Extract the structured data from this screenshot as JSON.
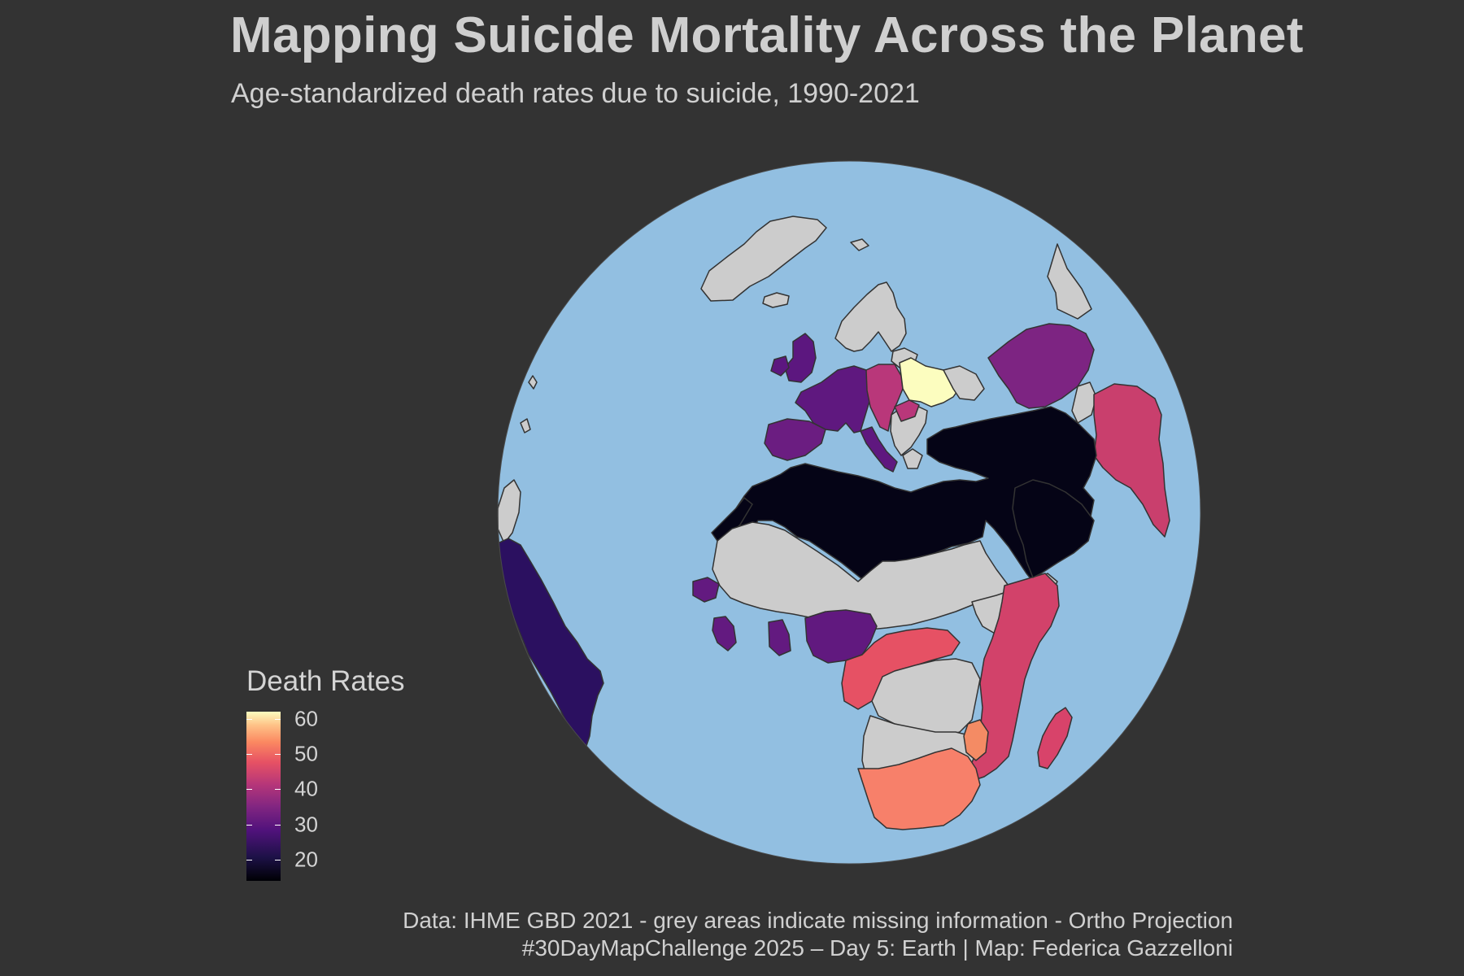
{
  "title": "Mapping Suicide Mortality Across the Planet",
  "subtitle": "Age-standardized death rates due to suicide, 1990-2021",
  "legend": {
    "title": "Death Rates",
    "min": 14,
    "max": 62,
    "ticks": [
      "60",
      "50",
      "40",
      "30",
      "20"
    ],
    "tick_values": [
      60,
      50,
      40,
      30,
      20
    ],
    "palette": "magma"
  },
  "caption": {
    "line1": "Data: IHME GBD 2021 - grey areas indicate missing information - Ortho Projection",
    "line2": "#30DayMapChallenge 2025 – Day 5: Earth | Map: Federica Gazzelloni"
  },
  "colors": {
    "background": "#333333",
    "ocean": "#92bfe1",
    "missing": "#cccccc",
    "border": "#333333"
  },
  "map": {
    "projection": "orthographic",
    "regions": [
      {
        "name": "Ukraine",
        "value": 62,
        "color": "#fcfdbf"
      },
      {
        "name": "Southern Africa",
        "value": 52,
        "color": "#f7806a"
      },
      {
        "name": "Mozambique",
        "value": 50,
        "color": "#f48b64"
      },
      {
        "name": "Central Africa",
        "value": 44,
        "color": "#e65164"
      },
      {
        "name": "Iran / South Asia",
        "value": 40,
        "color": "#c93f6d"
      },
      {
        "name": "East Africa",
        "value": 40,
        "color": "#d2426a"
      },
      {
        "name": "Madagascar",
        "value": 42,
        "color": "#d8436a"
      },
      {
        "name": "Central Europe",
        "value": 38,
        "color": "#b9377a"
      },
      {
        "name": "Central Asia",
        "value": 28,
        "color": "#7d2482"
      },
      {
        "name": "Western Europe",
        "value": 26,
        "color": "#5f187f"
      },
      {
        "name": "British Isles",
        "value": 26,
        "color": "#5c177f"
      },
      {
        "name": "Iberia",
        "value": 27,
        "color": "#6b1d81"
      },
      {
        "name": "West Africa",
        "value": 26,
        "color": "#631a80"
      },
      {
        "name": "Nigeria",
        "value": 26,
        "color": "#61197f"
      },
      {
        "name": "South America",
        "value": 20,
        "color": "#2b1060"
      },
      {
        "name": "North Africa & Middle East",
        "value": 14,
        "color": "#050416"
      }
    ]
  }
}
